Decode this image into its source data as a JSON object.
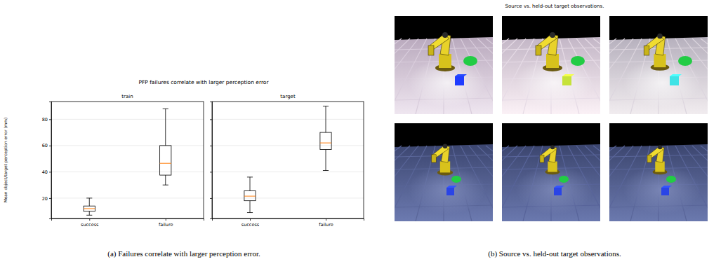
{
  "panel_a": {
    "title": "PFP failures correlate with larger perception error",
    "caption": "(a) Failures correlate with larger perception error."
  },
  "chart_data": [
    {
      "type": "box",
      "title": "train",
      "y_label": "Mean object/target perception error (mm)",
      "categories": [
        "success",
        "failure"
      ],
      "stats": [
        {
          "whislo": 7,
          "q1": 10,
          "med": 12,
          "q3": 14,
          "whishi": 20
        },
        {
          "whislo": 30,
          "q1": 37.5,
          "med": 46.5,
          "q3": 60,
          "whishi": 88
        }
      ],
      "ylim": [
        4.5,
        93.5
      ],
      "yticks": [
        20,
        40,
        60,
        80
      ],
      "grid": true
    },
    {
      "type": "box",
      "title": "target",
      "categories": [
        "success",
        "failure"
      ],
      "stats": [
        {
          "whislo": 9,
          "q1": 18,
          "med": 21.5,
          "q3": 25.5,
          "whishi": 36
        },
        {
          "whislo": 41,
          "q1": 57,
          "med": 62,
          "q3": 70,
          "whishi": 90
        }
      ],
      "ylim": [
        4.5,
        93.5
      ],
      "yticks": [
        20,
        40,
        60,
        80
      ],
      "grid": true,
      "tick_labels": "x"
    }
  ],
  "panel_b": {
    "title": "Source vs. held-out target observations.",
    "caption": "(b) Source vs. held-out target observations."
  }
}
